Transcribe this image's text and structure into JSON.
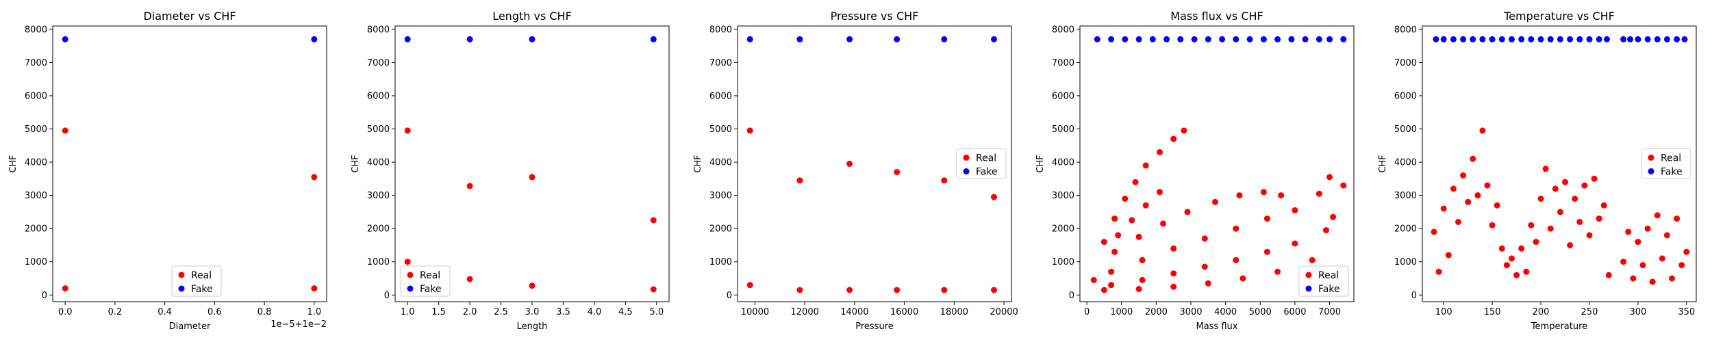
{
  "colors": {
    "real": "#ff0000",
    "fake": "#0000ff"
  },
  "chart_data": [
    {
      "type": "scatter",
      "title": "Diameter vs CHF",
      "xlabel": "Diameter",
      "ylabel": "CHF",
      "xlim": [
        -0.05,
        1.05
      ],
      "ylim": [
        -200,
        8100
      ],
      "xticks": [
        0.0,
        0.2,
        0.4,
        0.6,
        0.8,
        1.0
      ],
      "xtick_labels": [
        "0.0",
        "0.2",
        "0.4",
        "0.6",
        "0.8",
        "1.0"
      ],
      "yticks": [
        0,
        1000,
        2000,
        3000,
        4000,
        5000,
        6000,
        7000,
        8000
      ],
      "ytick_labels": [
        "0",
        "1000",
        "2000",
        "3000",
        "4000",
        "5000",
        "6000",
        "7000",
        "8000"
      ],
      "x_offset_label": "1e−5+1e−2",
      "legend_position": "lower-center",
      "series": [
        {
          "name": "Real",
          "color": "#ff0000",
          "points": [
            [
              0.0,
              200
            ],
            [
              0.0,
              4950
            ],
            [
              1.0,
              200
            ],
            [
              1.0,
              3550
            ]
          ]
        },
        {
          "name": "Fake",
          "color": "#0000ff",
          "points": [
            [
              0.0,
              7700
            ],
            [
              1.0,
              7700
            ]
          ]
        }
      ]
    },
    {
      "type": "scatter",
      "title": "Length vs CHF",
      "xlabel": "Length",
      "ylabel": "CHF",
      "xlim": [
        0.8,
        5.2
      ],
      "ylim": [
        -200,
        8100
      ],
      "xticks": [
        1.0,
        1.5,
        2.0,
        2.5,
        3.0,
        3.5,
        4.0,
        4.5,
        5.0
      ],
      "xtick_labels": [
        "1.0",
        "1.5",
        "2.0",
        "2.5",
        "3.0",
        "3.5",
        "4.0",
        "4.5",
        "5.0"
      ],
      "yticks": [
        0,
        1000,
        2000,
        3000,
        4000,
        5000,
        6000,
        7000,
        8000
      ],
      "ytick_labels": [
        "0",
        "1000",
        "2000",
        "3000",
        "4000",
        "5000",
        "6000",
        "7000",
        "8000"
      ],
      "legend_position": "lower-left",
      "series": [
        {
          "name": "Real",
          "color": "#ff0000",
          "points": [
            [
              1.0,
              1000
            ],
            [
              1.0,
              4950
            ],
            [
              2.0,
              480
            ],
            [
              2.0,
              3280
            ],
            [
              3.0,
              280
            ],
            [
              3.0,
              3550
            ],
            [
              4.95,
              170
            ],
            [
              4.95,
              2250
            ]
          ]
        },
        {
          "name": "Fake",
          "color": "#0000ff",
          "points": [
            [
              1.0,
              7700
            ],
            [
              2.0,
              7700
            ],
            [
              3.0,
              7700
            ],
            [
              4.95,
              7700
            ]
          ]
        }
      ]
    },
    {
      "type": "scatter",
      "title": "Pressure vs CHF",
      "xlabel": "Pressure",
      "ylabel": "CHF",
      "xlim": [
        9300,
        20300
      ],
      "ylim": [
        -200,
        8100
      ],
      "xticks": [
        10000,
        12000,
        14000,
        16000,
        18000,
        20000
      ],
      "xtick_labels": [
        "10000",
        "12000",
        "14000",
        "16000",
        "18000",
        "20000"
      ],
      "yticks": [
        0,
        1000,
        2000,
        3000,
        4000,
        5000,
        6000,
        7000,
        8000
      ],
      "ytick_labels": [
        "0",
        "1000",
        "2000",
        "3000",
        "4000",
        "5000",
        "6000",
        "7000",
        "8000"
      ],
      "legend_position": "center-right",
      "series": [
        {
          "name": "Real",
          "color": "#ff0000",
          "points": [
            [
              9800,
              300
            ],
            [
              9800,
              4950
            ],
            [
              11800,
              150
            ],
            [
              11800,
              3450
            ],
            [
              13800,
              150
            ],
            [
              13800,
              3950
            ],
            [
              15700,
              150
            ],
            [
              15700,
              3700
            ],
            [
              17600,
              150
            ],
            [
              17600,
              3450
            ],
            [
              19600,
              150
            ],
            [
              19600,
              2950
            ]
          ]
        },
        {
          "name": "Fake",
          "color": "#0000ff",
          "points": [
            [
              9800,
              7700
            ],
            [
              11800,
              7700
            ],
            [
              13800,
              7700
            ],
            [
              15700,
              7700
            ],
            [
              17600,
              7700
            ],
            [
              19600,
              7700
            ]
          ]
        }
      ]
    },
    {
      "type": "scatter",
      "title": "Mass flux vs CHF",
      "xlabel": "Mass flux",
      "ylabel": "CHF",
      "xlim": [
        -200,
        7700
      ],
      "ylim": [
        -200,
        8100
      ],
      "xticks": [
        0,
        1000,
        2000,
        3000,
        4000,
        5000,
        6000,
        7000
      ],
      "xtick_labels": [
        "0",
        "1000",
        "2000",
        "3000",
        "4000",
        "5000",
        "6000",
        "7000"
      ],
      "yticks": [
        0,
        1000,
        2000,
        3000,
        4000,
        5000,
        6000,
        7000,
        8000
      ],
      "ytick_labels": [
        "0",
        "1000",
        "2000",
        "3000",
        "4000",
        "5000",
        "6000",
        "7000",
        "8000"
      ],
      "legend_position": "lower-right",
      "series": [
        {
          "name": "Real",
          "color": "#ff0000",
          "points": [
            [
              200,
              450
            ],
            [
              500,
              1600
            ],
            [
              800,
              2300
            ],
            [
              1100,
              2900
            ],
            [
              1400,
              3400
            ],
            [
              1700,
              3900
            ],
            [
              2100,
              4300
            ],
            [
              2500,
              4700
            ],
            [
              2800,
              4950
            ],
            [
              900,
              1800
            ],
            [
              1300,
              2250
            ],
            [
              1700,
              2700
            ],
            [
              2100,
              3100
            ],
            [
              800,
              1300
            ],
            [
              1500,
              1750
            ],
            [
              2200,
              2150
            ],
            [
              2900,
              2500
            ],
            [
              3700,
              2800
            ],
            [
              4400,
              3000
            ],
            [
              5100,
              3100
            ],
            [
              5600,
              3000
            ],
            [
              700,
              700
            ],
            [
              1600,
              1050
            ],
            [
              2500,
              1400
            ],
            [
              3400,
              1700
            ],
            [
              4300,
              2000
            ],
            [
              5200,
              2300
            ],
            [
              6000,
              2550
            ],
            [
              6700,
              3050
            ],
            [
              7000,
              3550
            ],
            [
              7400,
              3300
            ],
            [
              700,
              300
            ],
            [
              1600,
              450
            ],
            [
              2500,
              650
            ],
            [
              3400,
              850
            ],
            [
              4300,
              1050
            ],
            [
              5200,
              1300
            ],
            [
              6000,
              1550
            ],
            [
              6900,
              1950
            ],
            [
              7100,
              2350
            ],
            [
              500,
              150
            ],
            [
              1500,
              180
            ],
            [
              2500,
              250
            ],
            [
              3500,
              350
            ],
            [
              4500,
              500
            ],
            [
              5500,
              700
            ],
            [
              6500,
              1050
            ]
          ]
        },
        {
          "name": "Fake",
          "color": "#0000ff",
          "points": [
            [
              300,
              7700
            ],
            [
              700,
              7700
            ],
            [
              1100,
              7700
            ],
            [
              1500,
              7700
            ],
            [
              1900,
              7700
            ],
            [
              2300,
              7700
            ],
            [
              2700,
              7700
            ],
            [
              3100,
              7700
            ],
            [
              3500,
              7700
            ],
            [
              3900,
              7700
            ],
            [
              4300,
              7700
            ],
            [
              4700,
              7700
            ],
            [
              5100,
              7700
            ],
            [
              5500,
              7700
            ],
            [
              5900,
              7700
            ],
            [
              6300,
              7700
            ],
            [
              6700,
              7700
            ],
            [
              7000,
              7700
            ],
            [
              7400,
              7700
            ]
          ]
        }
      ]
    },
    {
      "type": "scatter",
      "title": "Temperature vs CHF",
      "xlabel": "Temperature",
      "ylabel": "CHF",
      "xlim": [
        78,
        360
      ],
      "ylim": [
        -200,
        8100
      ],
      "xticks": [
        100,
        150,
        200,
        250,
        300,
        350
      ],
      "xtick_labels": [
        "100",
        "150",
        "200",
        "250",
        "300",
        "350"
      ],
      "yticks": [
        0,
        1000,
        2000,
        3000,
        4000,
        5000,
        6000,
        7000,
        8000
      ],
      "ytick_labels": [
        "0",
        "1000",
        "2000",
        "3000",
        "4000",
        "5000",
        "6000",
        "7000",
        "8000"
      ],
      "legend_position": "center-right",
      "series": [
        {
          "name": "Real",
          "color": "#ff0000",
          "points": [
            [
              90,
              1900
            ],
            [
              95,
              700
            ],
            [
              100,
              2600
            ],
            [
              105,
              1200
            ],
            [
              110,
              3200
            ],
            [
              115,
              2200
            ],
            [
              120,
              3600
            ],
            [
              125,
              2800
            ],
            [
              130,
              4100
            ],
            [
              135,
              3000
            ],
            [
              140,
              4950
            ],
            [
              145,
              3300
            ],
            [
              150,
              2100
            ],
            [
              155,
              2700
            ],
            [
              160,
              1400
            ],
            [
              165,
              900
            ],
            [
              170,
              1100
            ],
            [
              175,
              600
            ],
            [
              180,
              1400
            ],
            [
              185,
              700
            ],
            [
              190,
              2100
            ],
            [
              195,
              1600
            ],
            [
              200,
              2900
            ],
            [
              205,
              3800
            ],
            [
              210,
              2000
            ],
            [
              215,
              3200
            ],
            [
              220,
              2500
            ],
            [
              225,
              3400
            ],
            [
              230,
              1500
            ],
            [
              235,
              2900
            ],
            [
              240,
              2200
            ],
            [
              245,
              3300
            ],
            [
              250,
              1800
            ],
            [
              255,
              3500
            ],
            [
              260,
              2300
            ],
            [
              265,
              2700
            ],
            [
              270,
              600
            ],
            [
              285,
              1000
            ],
            [
              290,
              1900
            ],
            [
              295,
              500
            ],
            [
              300,
              1600
            ],
            [
              305,
              900
            ],
            [
              310,
              2000
            ],
            [
              315,
              400
            ],
            [
              320,
              2400
            ],
            [
              325,
              1100
            ],
            [
              330,
              1800
            ],
            [
              335,
              500
            ],
            [
              340,
              2300
            ],
            [
              345,
              900
            ],
            [
              350,
              1300
            ]
          ]
        },
        {
          "name": "Fake",
          "color": "#0000ff",
          "points": [
            [
              92,
              7700
            ],
            [
              100,
              7700
            ],
            [
              110,
              7700
            ],
            [
              120,
              7700
            ],
            [
              130,
              7700
            ],
            [
              140,
              7700
            ],
            [
              150,
              7700
            ],
            [
              160,
              7700
            ],
            [
              170,
              7700
            ],
            [
              180,
              7700
            ],
            [
              190,
              7700
            ],
            [
              200,
              7700
            ],
            [
              210,
              7700
            ],
            [
              220,
              7700
            ],
            [
              230,
              7700
            ],
            [
              240,
              7700
            ],
            [
              250,
              7700
            ],
            [
              260,
              7700
            ],
            [
              268,
              7700
            ],
            [
              285,
              7700
            ],
            [
              292,
              7700
            ],
            [
              300,
              7700
            ],
            [
              310,
              7700
            ],
            [
              320,
              7700
            ],
            [
              330,
              7700
            ],
            [
              340,
              7700
            ],
            [
              348,
              7700
            ]
          ]
        }
      ]
    }
  ]
}
